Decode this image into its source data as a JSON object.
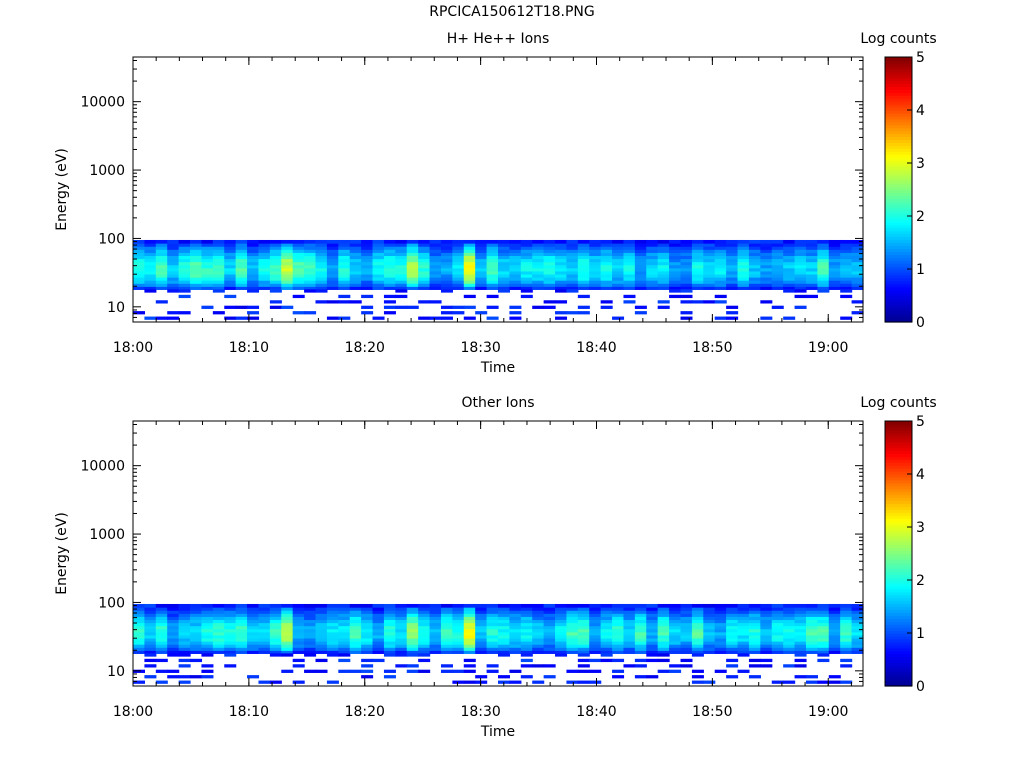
{
  "figure": {
    "title": "RPCICA150612T18.PNG"
  },
  "chart_data": [
    {
      "type": "heatmap",
      "title": "H+ He++ Ions",
      "xlabel": "Time",
      "ylabel": "Energy (eV)",
      "x_ticks": [
        "18:00",
        "18:10",
        "18:20",
        "18:30",
        "18:40",
        "18:50",
        "19:00"
      ],
      "x_range": [
        "18:00",
        "19:03"
      ],
      "y_scale": "log",
      "y_ticks": [
        "10",
        "100",
        "1000",
        "10000"
      ],
      "y_range": [
        6,
        45000
      ],
      "colorbar": {
        "label": "Log counts",
        "ticks": [
          "0",
          "1",
          "2",
          "3",
          "4",
          "5"
        ],
        "range": [
          0,
          5
        ]
      },
      "colormap": [
        "#00008f",
        "#0000ff",
        "#0080ff",
        "#00ffff",
        "#80ff80",
        "#ffff00",
        "#ff8000",
        "#ff0000",
        "#800000"
      ],
      "energy_band": [
        18,
        95
      ],
      "peaks": [
        {
          "time": "18:13",
          "level": 3.0
        },
        {
          "time": "18:24",
          "level": 2.7
        },
        {
          "time": "18:29",
          "level": 3.1
        }
      ]
    },
    {
      "type": "heatmap",
      "title": "Other Ions",
      "xlabel": "Time",
      "ylabel": "Energy (eV)",
      "x_ticks": [
        "18:00",
        "18:10",
        "18:20",
        "18:30",
        "18:40",
        "18:50",
        "19:00"
      ],
      "x_range": [
        "18:00",
        "19:03"
      ],
      "y_scale": "log",
      "y_ticks": [
        "10",
        "100",
        "1000",
        "10000"
      ],
      "y_range": [
        6,
        45000
      ],
      "colorbar": {
        "label": "Log counts",
        "ticks": [
          "0",
          "1",
          "2",
          "3",
          "4",
          "5"
        ],
        "range": [
          0,
          5
        ]
      },
      "colormap": [
        "#00008f",
        "#0000ff",
        "#0080ff",
        "#00ffff",
        "#80ff80",
        "#ffff00",
        "#ff8000",
        "#ff0000",
        "#800000"
      ],
      "energy_band": [
        18,
        95
      ],
      "peaks": [
        {
          "time": "18:13",
          "level": 2.9
        },
        {
          "time": "18:24",
          "level": 2.6
        },
        {
          "time": "18:29",
          "level": 3.1
        }
      ]
    }
  ]
}
